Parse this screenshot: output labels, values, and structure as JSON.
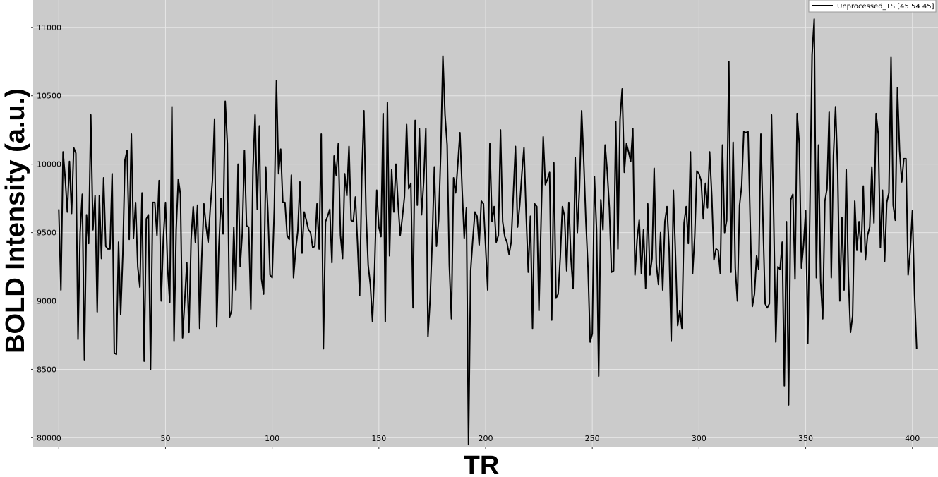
{
  "chart_data": {
    "type": "line",
    "xlabel": "TR",
    "ylabel": "BOLD Intensity (a.u.)",
    "xlim": [
      -12,
      412
    ],
    "ylim": [
      7935,
      11200
    ],
    "xticks": [
      0,
      50,
      100,
      150,
      200,
      250,
      300,
      350,
      400
    ],
    "yticks": [
      8000,
      8500,
      9000,
      9500,
      10000,
      10500,
      11000
    ],
    "grid": true,
    "legend_position": "top-right",
    "background_color": "#cbcbcb",
    "line_color": "#000000",
    "series": [
      {
        "name": "Unprocessed_TS [45 54 45]",
        "x_start": 0,
        "x_step": 1,
        "values": [
          9670,
          9080,
          10090,
          9900,
          9650,
          10020,
          9640,
          10120,
          10080,
          8720,
          9500,
          9780,
          8570,
          9630,
          9420,
          10360,
          9520,
          9770,
          8920,
          9770,
          9310,
          9900,
          9400,
          9380,
          9380,
          9930,
          8620,
          8610,
          9430,
          8900,
          9340,
          10030,
          10100,
          9450,
          10220,
          9460,
          9720,
          9250,
          9100,
          9790,
          8560,
          9600,
          9630,
          8500,
          9720,
          9720,
          9480,
          9880,
          9000,
          9460,
          9720,
          9240,
          8990,
          10420,
          8710,
          9520,
          9890,
          9780,
          8730,
          9000,
          9280,
          8770,
          9450,
          9690,
          9430,
          9700,
          8800,
          9320,
          9710,
          9550,
          9430,
          9680,
          9880,
          10330,
          8810,
          9390,
          9750,
          9490,
          10460,
          10150,
          8880,
          8930,
          9540,
          9080,
          10000,
          9250,
          9500,
          10100,
          9550,
          9540,
          8940,
          9970,
          10360,
          9670,
          10280,
          9160,
          9050,
          9980,
          9650,
          9190,
          9170,
          9680,
          10610,
          9930,
          10110,
          9720,
          9720,
          9480,
          9450,
          9920,
          9170,
          9370,
          9510,
          9870,
          9350,
          9650,
          9590,
          9520,
          9500,
          9390,
          9400,
          9710,
          9380,
          10220,
          8650,
          9580,
          9620,
          9670,
          9280,
          10060,
          9920,
          10150,
          9480,
          9310,
          9930,
          9770,
          10130,
          9590,
          9580,
          9760,
          9420,
          9040,
          9910,
          10390,
          9640,
          9260,
          9120,
          8850,
          9240,
          9810,
          9540,
          9470,
          10370,
          8850,
          10450,
          9330,
          9960,
          9650,
          10000,
          9710,
          9480,
          9610,
          9760,
          10290,
          9820,
          9860,
          8950,
          10320,
          9700,
          10260,
          9630,
          9870,
          10260,
          8740,
          9010,
          9440,
          9980,
          9400,
          9590,
          10080,
          10790,
          10360,
          10140,
          9260,
          8870,
          9900,
          9790,
          10000,
          10230,
          9820,
          9460,
          9680,
          7950,
          9220,
          9450,
          9650,
          9620,
          9410,
          9730,
          9710,
          9400,
          9080,
          10150,
          9580,
          9690,
          9430,
          9480,
          10250,
          9580,
          9470,
          9430,
          9340,
          9430,
          9780,
          10130,
          9540,
          9700,
          9930,
          10120,
          9630,
          9210,
          9620,
          8800,
          9710,
          9690,
          8930,
          9580,
          10200,
          9850,
          9890,
          9940,
          8860,
          10010,
          9020,
          9050,
          9320,
          9690,
          9620,
          9220,
          9720,
          9310,
          9090,
          10050,
          9500,
          9820,
          10390,
          10020,
          9580,
          9240,
          8700,
          8760,
          9910,
          9520,
          8450,
          9740,
          9520,
          10140,
          9950,
          9680,
          9210,
          9220,
          10310,
          9380,
          10330,
          10550,
          9940,
          10150,
          10090,
          10020,
          10260,
          9190,
          9450,
          9590,
          9200,
          9520,
          9090,
          9710,
          9190,
          9310,
          9970,
          9270,
          9120,
          9500,
          9080,
          9580,
          9690,
          9380,
          8710,
          9810,
          9330,
          8820,
          8930,
          8800,
          9570,
          9690,
          9420,
          10090,
          9200,
          9470,
          9950,
          9930,
          9880,
          9600,
          9860,
          9680,
          10090,
          9770,
          9300,
          9380,
          9370,
          9200,
          10140,
          9500,
          9590,
          10750,
          9210,
          10160,
          9240,
          9000,
          9700,
          9840,
          10240,
          10230,
          10240,
          9580,
          8960,
          9050,
          9330,
          9230,
          10220,
          9580,
          8980,
          8950,
          8980,
          10360,
          9620,
          8700,
          9250,
          9230,
          9430,
          8380,
          9580,
          8240,
          9740,
          9780,
          9160,
          10370,
          10150,
          9240,
          9410,
          9660,
          8690,
          9700,
          10800,
          11060,
          9170,
          10140,
          9140,
          8870,
          9730,
          9820,
          10380,
          9170,
          10060,
          10420,
          9950,
          9000,
          9610,
          9080,
          9960,
          9180,
          8770,
          8890,
          9730,
          9370,
          9580,
          9360,
          9840,
          9300,
          9480,
          9540,
          9980,
          9570,
          10370,
          10220,
          9390,
          9810,
          9290,
          9720,
          9790,
          10780,
          9700,
          9590,
          10560,
          10100,
          9870,
          10040,
          10040,
          9190,
          9370,
          9660,
          9050,
          8650
        ]
      }
    ]
  }
}
